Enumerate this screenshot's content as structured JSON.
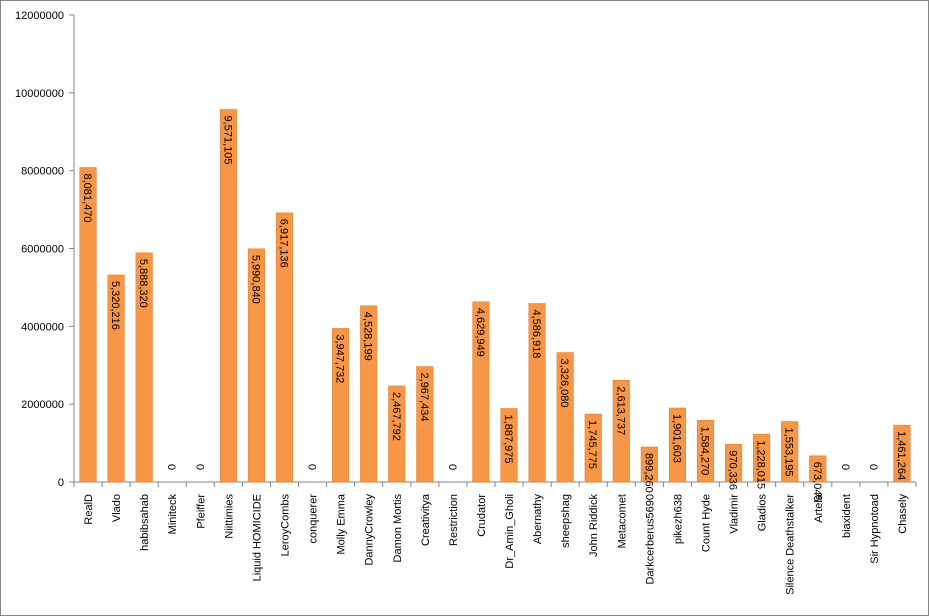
{
  "chart_data": {
    "type": "bar",
    "categories": [
      "RealD",
      "Vlado",
      "habibsahab",
      "Miniteck",
      "Pfeiffer",
      "Niittimies",
      "Liquid HOMICIDE",
      "LeroyCombs",
      "conquerer",
      "Molly Emma",
      "DannyCrowley",
      "Damon Mortis",
      "Creativitya",
      "Restriction",
      "Crudator",
      "Dr_Amin_Gholi",
      "Abernathy",
      "sheepshag",
      "John Riddick",
      "Metacomet",
      "Darkcerberus5690",
      "pikezh638",
      "Count Hyde",
      "Vladimir",
      "Gladios",
      "Silence Deathstalker",
      "Artela",
      "biaxident",
      "Sir Hypnotoad",
      "Chasely"
    ],
    "values": [
      8081470,
      5320216,
      5888320,
      0,
      0,
      9571105,
      5990840,
      6917136,
      0,
      3947732,
      4528199,
      2467792,
      2967434,
      0,
      4629949,
      1887975,
      4586918,
      3326080,
      1745775,
      2613737,
      899260,
      1901603,
      1584270,
      970336,
      1228015,
      1553195,
      673045,
      0,
      0,
      1461264
    ],
    "data_labels": [
      "8,081,470",
      "5,320,216",
      "5,888,320",
      "0",
      "0",
      "9,571,105",
      "5,990,840",
      "6,917,136",
      "0",
      "3,947,732",
      "4,528,199",
      "2,467,792",
      "2,967,434",
      "0",
      "4,629,949",
      "1,887,975",
      "4,586,918",
      "3,326,080",
      "1,745,775",
      "2,613,737",
      "899,260",
      "1,901,603",
      "1,584,270",
      "970,336",
      "1,228,015",
      "1,553,195",
      "673,045",
      "0",
      "0",
      "1,461,264"
    ],
    "ylim": [
      0,
      12000000
    ],
    "yticks": [
      "0",
      "2000000",
      "4000000",
      "6000000",
      "8000000",
      "10000000",
      "12000000"
    ],
    "title": "",
    "xlabel": "",
    "ylabel": "",
    "grid": false,
    "legend": "none",
    "colors": {
      "bar": "#F79646",
      "bar_stroke": "#E0843A",
      "axis": "#868686",
      "text": "#000000"
    }
  }
}
